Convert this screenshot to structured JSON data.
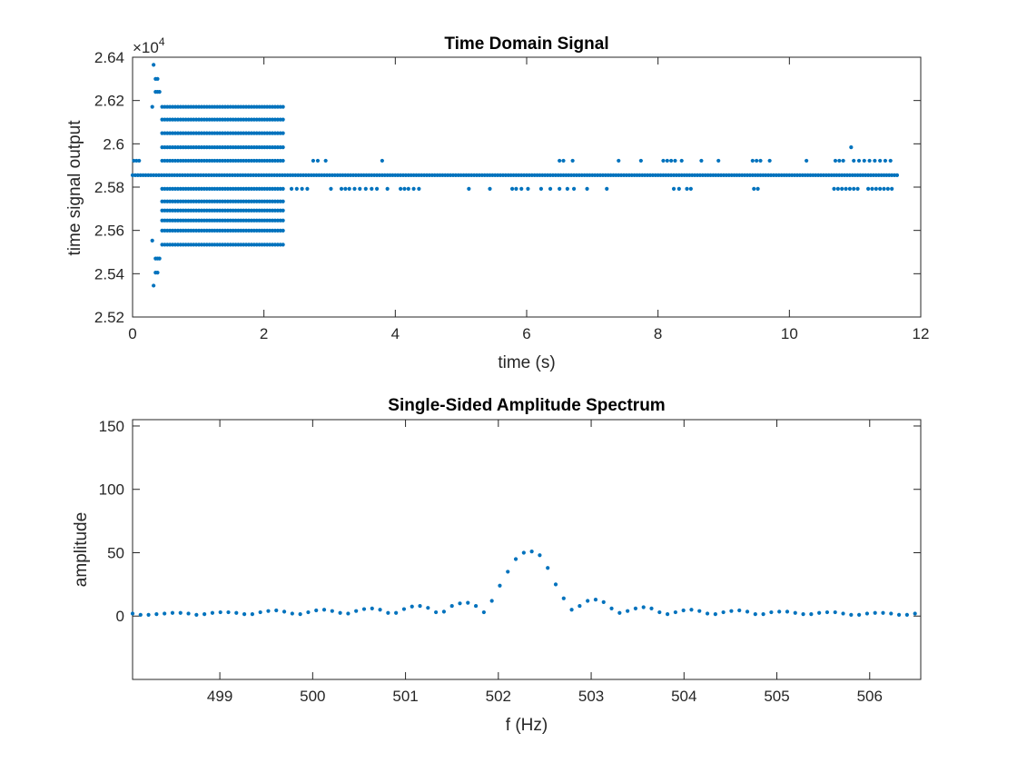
{
  "colors": {
    "series": "#0072BD",
    "axis": "#262626",
    "background": "#ffffff"
  },
  "chart_data": [
    {
      "type": "scatter",
      "title": "Time Domain Signal",
      "xlabel": "time (s)",
      "ylabel": "time signal output",
      "y_multiplier_label": "×10",
      "y_multiplier_exponent": "4",
      "xlim": [
        0,
        12
      ],
      "ylim": [
        2.52,
        2.64
      ],
      "x_ticks": [
        0,
        2,
        4,
        6,
        8,
        10,
        12
      ],
      "x_tick_labels": [
        "0",
        "2",
        "4",
        "6",
        "8",
        "10",
        "12"
      ],
      "y_ticks": [
        2.52,
        2.54,
        2.56,
        2.58,
        2.6,
        2.62,
        2.64
      ],
      "y_tick_labels": [
        "2.52",
        "2.54",
        "2.56",
        "2.58",
        "2.6",
        "2.62",
        "2.64"
      ],
      "grid": false,
      "baseline_level": 2.5855,
      "baseline_x_range": [
        0,
        11.65
      ],
      "quantization_levels": [
        2.5534,
        2.5553,
        2.5599,
        2.5646,
        2.5692,
        2.5734,
        2.5792,
        2.5855,
        2.5922,
        2.5984,
        2.6049,
        2.6112,
        2.6171
      ],
      "dense_band": {
        "x_range": [
          0.45,
          2.32
        ],
        "levels": [
          2.5534,
          2.5599,
          2.5646,
          2.5692,
          2.5734,
          2.5792,
          2.5922,
          2.5984,
          2.6049,
          2.6112,
          2.6171
        ]
      },
      "sparse_points": [
        {
          "x": 0.32,
          "y": 2.6365
        },
        {
          "x": 0.35,
          "y": 2.63
        },
        {
          "x": 0.38,
          "y": 2.63
        },
        {
          "x": 0.35,
          "y": 2.624
        },
        {
          "x": 0.38,
          "y": 2.624
        },
        {
          "x": 0.41,
          "y": 2.624
        },
        {
          "x": 0.32,
          "y": 2.5345
        },
        {
          "x": 0.35,
          "y": 2.5405
        },
        {
          "x": 0.38,
          "y": 2.5405
        },
        {
          "x": 0.35,
          "y": 2.547
        },
        {
          "x": 0.38,
          "y": 2.547
        },
        {
          "x": 0.41,
          "y": 2.547
        },
        {
          "x": 0.3,
          "y": 2.5553
        },
        {
          "x": 0.3,
          "y": 2.6171
        },
        {
          "x": 0.02,
          "y": 2.5922
        },
        {
          "x": 0.06,
          "y": 2.5922
        },
        {
          "x": 0.1,
          "y": 2.5922
        },
        {
          "x": 2.42,
          "y": 2.5792
        },
        {
          "x": 2.5,
          "y": 2.5792
        },
        {
          "x": 2.58,
          "y": 2.5792
        },
        {
          "x": 2.66,
          "y": 2.5792
        },
        {
          "x": 2.75,
          "y": 2.5922
        },
        {
          "x": 2.82,
          "y": 2.5922
        },
        {
          "x": 2.94,
          "y": 2.5922
        },
        {
          "x": 3.02,
          "y": 2.5792
        },
        {
          "x": 3.18,
          "y": 2.5792
        },
        {
          "x": 3.24,
          "y": 2.5792
        },
        {
          "x": 3.3,
          "y": 2.5792
        },
        {
          "x": 3.38,
          "y": 2.5792
        },
        {
          "x": 3.46,
          "y": 2.5792
        },
        {
          "x": 3.55,
          "y": 2.5792
        },
        {
          "x": 3.64,
          "y": 2.5792
        },
        {
          "x": 3.72,
          "y": 2.5792
        },
        {
          "x": 3.8,
          "y": 2.5922
        },
        {
          "x": 3.88,
          "y": 2.5792
        },
        {
          "x": 4.08,
          "y": 2.5792
        },
        {
          "x": 4.14,
          "y": 2.5792
        },
        {
          "x": 4.2,
          "y": 2.5792
        },
        {
          "x": 4.28,
          "y": 2.5792
        },
        {
          "x": 4.36,
          "y": 2.5792
        },
        {
          "x": 5.12,
          "y": 2.5792
        },
        {
          "x": 5.44,
          "y": 2.5792
        },
        {
          "x": 5.78,
          "y": 2.5792
        },
        {
          "x": 5.84,
          "y": 2.5792
        },
        {
          "x": 5.92,
          "y": 2.5792
        },
        {
          "x": 6.02,
          "y": 2.5792
        },
        {
          "x": 6.22,
          "y": 2.5792
        },
        {
          "x": 6.36,
          "y": 2.5792
        },
        {
          "x": 6.5,
          "y": 2.5922
        },
        {
          "x": 6.56,
          "y": 2.5922
        },
        {
          "x": 6.5,
          "y": 2.5792
        },
        {
          "x": 6.62,
          "y": 2.5792
        },
        {
          "x": 6.7,
          "y": 2.5922
        },
        {
          "x": 6.72,
          "y": 2.5792
        },
        {
          "x": 6.92,
          "y": 2.5792
        },
        {
          "x": 7.22,
          "y": 2.5792
        },
        {
          "x": 7.4,
          "y": 2.5922
        },
        {
          "x": 7.74,
          "y": 2.5922
        },
        {
          "x": 8.08,
          "y": 2.5922
        },
        {
          "x": 8.14,
          "y": 2.5922
        },
        {
          "x": 8.2,
          "y": 2.5922
        },
        {
          "x": 8.26,
          "y": 2.5922
        },
        {
          "x": 8.36,
          "y": 2.5922
        },
        {
          "x": 8.24,
          "y": 2.5792
        },
        {
          "x": 8.32,
          "y": 2.5792
        },
        {
          "x": 8.44,
          "y": 2.5792
        },
        {
          "x": 8.5,
          "y": 2.5792
        },
        {
          "x": 8.66,
          "y": 2.5922
        },
        {
          "x": 8.92,
          "y": 2.5922
        },
        {
          "x": 9.44,
          "y": 2.5922
        },
        {
          "x": 9.5,
          "y": 2.5922
        },
        {
          "x": 9.56,
          "y": 2.5922
        },
        {
          "x": 9.46,
          "y": 2.5792
        },
        {
          "x": 9.52,
          "y": 2.5792
        },
        {
          "x": 9.7,
          "y": 2.5922
        },
        {
          "x": 10.26,
          "y": 2.5922
        },
        {
          "x": 10.7,
          "y": 2.5922
        },
        {
          "x": 10.76,
          "y": 2.5922
        },
        {
          "x": 10.82,
          "y": 2.5922
        },
        {
          "x": 10.94,
          "y": 2.5984
        },
        {
          "x": 10.98,
          "y": 2.5922
        },
        {
          "x": 11.06,
          "y": 2.5922
        },
        {
          "x": 11.14,
          "y": 2.5922
        },
        {
          "x": 11.22,
          "y": 2.5922
        },
        {
          "x": 11.3,
          "y": 2.5922
        },
        {
          "x": 11.38,
          "y": 2.5922
        },
        {
          "x": 11.46,
          "y": 2.5922
        },
        {
          "x": 11.54,
          "y": 2.5922
        },
        {
          "x": 10.68,
          "y": 2.5792
        },
        {
          "x": 10.74,
          "y": 2.5792
        },
        {
          "x": 10.8,
          "y": 2.5792
        },
        {
          "x": 10.86,
          "y": 2.5792
        },
        {
          "x": 10.92,
          "y": 2.5792
        },
        {
          "x": 10.98,
          "y": 2.5792
        },
        {
          "x": 11.04,
          "y": 2.5792
        },
        {
          "x": 11.2,
          "y": 2.5792
        },
        {
          "x": 11.26,
          "y": 2.5792
        },
        {
          "x": 11.32,
          "y": 2.5792
        },
        {
          "x": 11.38,
          "y": 2.5792
        },
        {
          "x": 11.44,
          "y": 2.5792
        },
        {
          "x": 11.5,
          "y": 2.5792
        },
        {
          "x": 11.56,
          "y": 2.5792
        }
      ]
    },
    {
      "type": "scatter",
      "title": "Single-Sided Amplitude Spectrum",
      "xlabel": "f (Hz)",
      "ylabel": "amplitude",
      "xlim": [
        498.06,
        506.55
      ],
      "ylim": [
        -50,
        155
      ],
      "x_ticks": [
        499,
        500,
        501,
        502,
        503,
        504,
        505,
        506
      ],
      "x_tick_labels": [
        "499",
        "500",
        "501",
        "502",
        "503",
        "504",
        "505",
        "506"
      ],
      "y_ticks": [
        0,
        50,
        100,
        150
      ],
      "y_tick_labels": [
        "0",
        "50",
        "100",
        "150"
      ],
      "grid": false,
      "x": [
        498.06,
        498.146,
        498.232,
        498.318,
        498.404,
        498.49,
        498.576,
        498.662,
        498.748,
        498.834,
        498.92,
        499.006,
        499.092,
        499.178,
        499.264,
        499.35,
        499.436,
        499.522,
        499.608,
        499.694,
        499.78,
        499.866,
        499.952,
        500.038,
        500.124,
        500.21,
        500.296,
        500.382,
        500.468,
        500.554,
        500.64,
        500.726,
        500.812,
        500.898,
        500.984,
        501.07,
        501.156,
        501.242,
        501.328,
        501.414,
        501.5,
        501.586,
        501.672,
        501.758,
        501.844,
        501.93,
        502.016,
        502.102,
        502.188,
        502.274,
        502.36,
        502.446,
        502.532,
        502.618,
        502.704,
        502.79,
        502.876,
        502.962,
        503.048,
        503.134,
        503.22,
        503.306,
        503.392,
        503.478,
        503.564,
        503.65,
        503.736,
        503.822,
        503.908,
        503.994,
        504.08,
        504.166,
        504.252,
        504.338,
        504.424,
        504.51,
        504.596,
        504.682,
        504.768,
        504.854,
        504.94,
        505.026,
        505.112,
        505.198,
        505.284,
        505.37,
        505.456,
        505.542,
        505.628,
        505.714,
        505.8,
        505.886,
        505.972,
        506.058,
        506.144,
        506.23,
        506.316,
        506.402,
        506.488
      ],
      "y": [
        2,
        1,
        1,
        1.5,
        2,
        2.5,
        2.5,
        2,
        1,
        1.5,
        2.5,
        3,
        3,
        2.5,
        1.5,
        1.5,
        3,
        4,
        4.5,
        3.5,
        2,
        1.5,
        3,
        4.5,
        5,
        4,
        2.5,
        2,
        4,
        5.5,
        6,
        5,
        2.5,
        2.5,
        5.5,
        7.5,
        8,
        6.5,
        3,
        3.5,
        8,
        10,
        10.5,
        8,
        3,
        12,
        24,
        35,
        45,
        50,
        51,
        48,
        38,
        25,
        14,
        5,
        8,
        12,
        13,
        11,
        6,
        2.5,
        4,
        6,
        7,
        6,
        3,
        1.5,
        3,
        4.5,
        5,
        4,
        2,
        1.5,
        3,
        4,
        4.5,
        3.5,
        1.5,
        1.5,
        3,
        3.5,
        3.5,
        2.5,
        1.5,
        1.5,
        2.5,
        3,
        3,
        2,
        1,
        1,
        2,
        2.5,
        2.5,
        2,
        1,
        1,
        2
      ]
    }
  ]
}
